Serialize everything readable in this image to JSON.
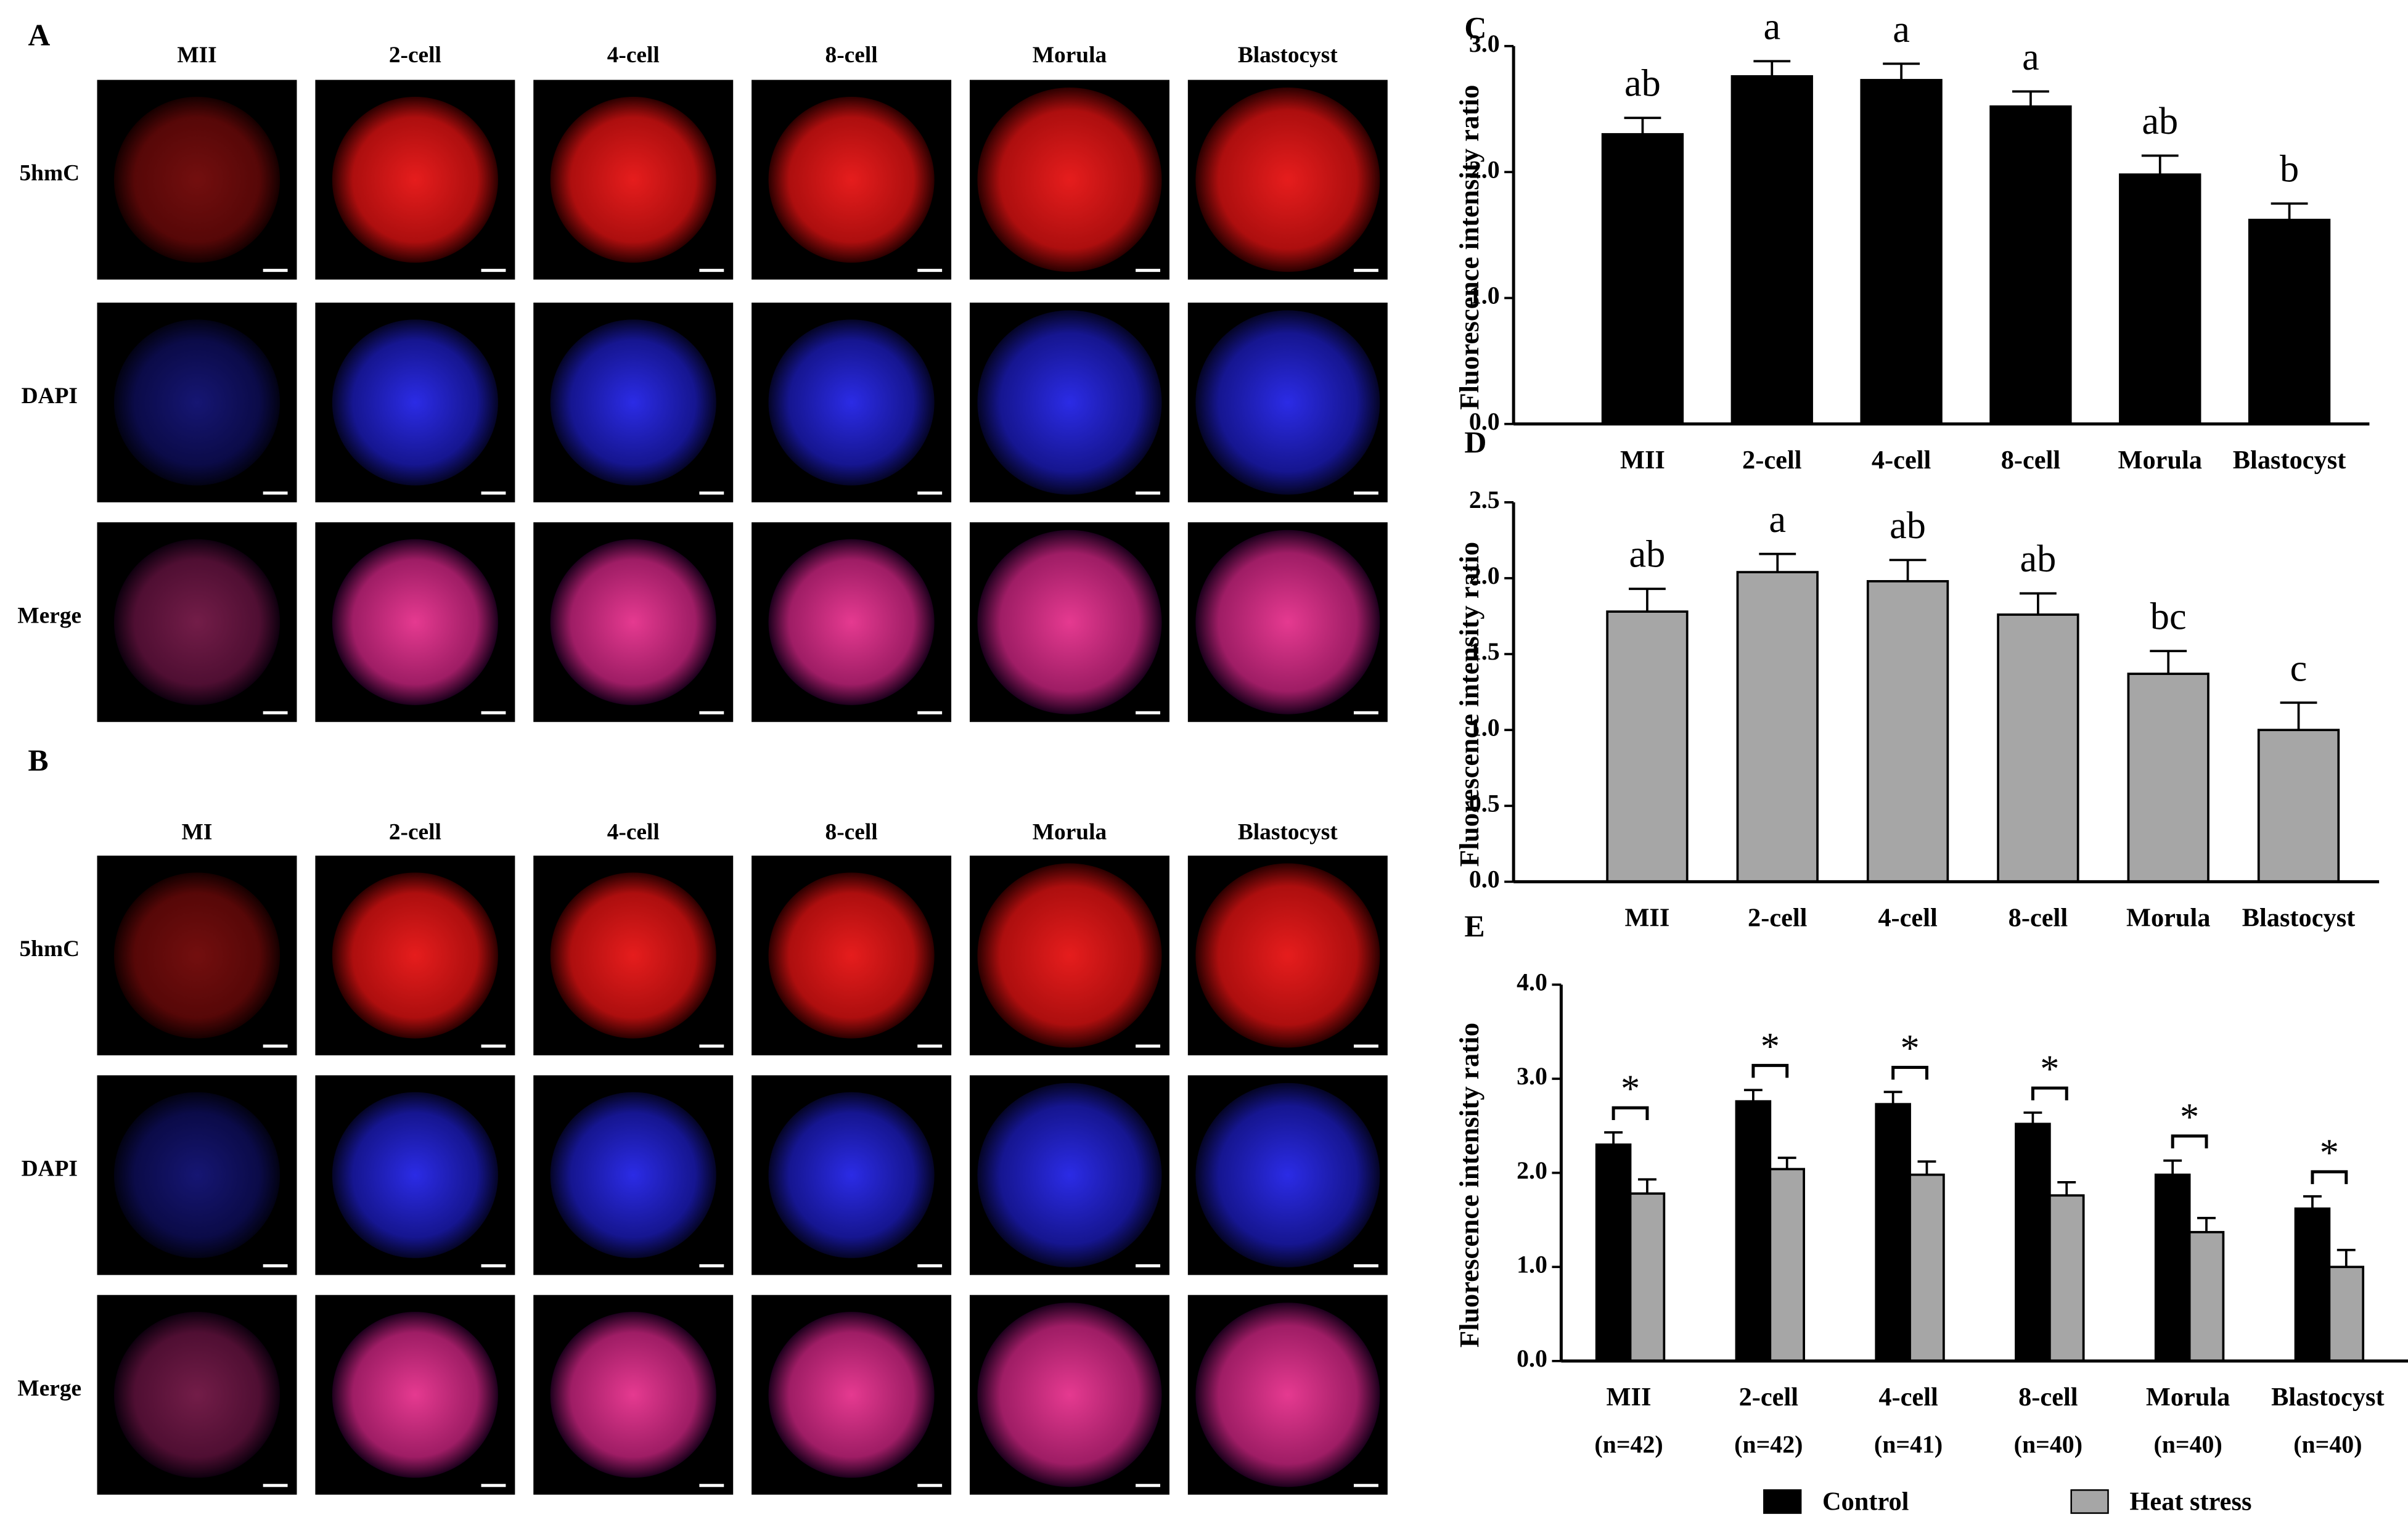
{
  "images": {
    "A": {
      "panel": "A",
      "columns": [
        "MII",
        "2-cell",
        "4-cell",
        "8-cell",
        "Morula",
        "Blastocyst"
      ],
      "rows": [
        "5hmC",
        "DAPI",
        "Merge"
      ]
    },
    "B": {
      "panel": "B",
      "columns": [
        "MI",
        "2-cell",
        "4-cell",
        "8-cell",
        "Morula",
        "Blastocyst"
      ],
      "rows": [
        "5hmC",
        "DAPI",
        "Merge"
      ]
    }
  },
  "chart_data": [
    {
      "type": "bar",
      "panel": "C",
      "y_label": "Fluorescence intensity ratio",
      "categories": [
        "MII",
        "2-cell",
        "4-cell",
        "8-cell",
        "Morula",
        "Blastocyst"
      ],
      "values": [
        2.3,
        2.76,
        2.73,
        2.52,
        1.98,
        1.62
      ],
      "errors": [
        0.13,
        0.12,
        0.13,
        0.12,
        0.15,
        0.13
      ],
      "annotations": [
        "ab",
        "a",
        "a",
        "a",
        "ab",
        "b"
      ],
      "color": "#000000",
      "ylim": [
        0,
        3
      ],
      "yticks": [
        {
          "value": 0,
          "label": "0.0"
        },
        {
          "value": 1,
          "label": "1.0"
        },
        {
          "value": 2,
          "label": "2.0"
        },
        {
          "value": 3,
          "label": "3.0"
        }
      ]
    },
    {
      "type": "bar",
      "panel": "D",
      "y_label": "Fluorescence intensity ratio",
      "categories": [
        "MII",
        "2-cell",
        "4-cell",
        "8-cell",
        "Morula",
        "Blastocyst"
      ],
      "values": [
        1.78,
        2.04,
        1.98,
        1.76,
        1.37,
        1.0
      ],
      "errors": [
        0.15,
        0.12,
        0.14,
        0.14,
        0.15,
        0.18
      ],
      "annotations": [
        "ab",
        "a",
        "ab",
        "ab",
        "bc",
        "c"
      ],
      "color": "#a6a6a6",
      "ylim": [
        0,
        2.5
      ],
      "yticks": [
        {
          "value": 0,
          "label": "0.0"
        },
        {
          "value": 0.5,
          "label": "0.5"
        },
        {
          "value": 1,
          "label": "1.0"
        },
        {
          "value": 1.5,
          "label": "1.5"
        },
        {
          "value": 2,
          "label": "2.0"
        },
        {
          "value": 2.5,
          "label": "2.5"
        }
      ]
    },
    {
      "type": "grouped-bar",
      "panel": "E",
      "y_label": "Fluorescence intensity ratio",
      "categories": [
        "MII",
        "2-cell",
        "4-cell",
        "8-cell",
        "Morula",
        "Blastocyst"
      ],
      "sample_sizes": [
        "(n=42)",
        "(n=42)",
        "(n=41)",
        "(n=40)",
        "(n=40)",
        "(n=40)"
      ],
      "annotations": [
        "*",
        "*",
        "*",
        "*",
        "*",
        "*"
      ],
      "series": [
        {
          "name": "Control",
          "color": "#000000",
          "values": [
            2.3,
            2.76,
            2.73,
            2.52,
            1.98,
            1.62
          ],
          "errors": [
            0.13,
            0.12,
            0.13,
            0.12,
            0.15,
            0.13
          ]
        },
        {
          "name": "Heat stress",
          "color": "#a6a6a6",
          "values": [
            1.78,
            2.04,
            1.98,
            1.76,
            1.37,
            1.0
          ],
          "errors": [
            0.15,
            0.12,
            0.14,
            0.14,
            0.15,
            0.18
          ]
        }
      ],
      "legend": "bottom",
      "ylim": [
        0,
        4
      ],
      "yticks": [
        {
          "value": 0,
          "label": "0.0"
        },
        {
          "value": 1,
          "label": "1.0"
        },
        {
          "value": 2,
          "label": "2.0"
        },
        {
          "value": 3,
          "label": "3.0"
        },
        {
          "value": 4,
          "label": "4.0"
        }
      ]
    }
  ]
}
